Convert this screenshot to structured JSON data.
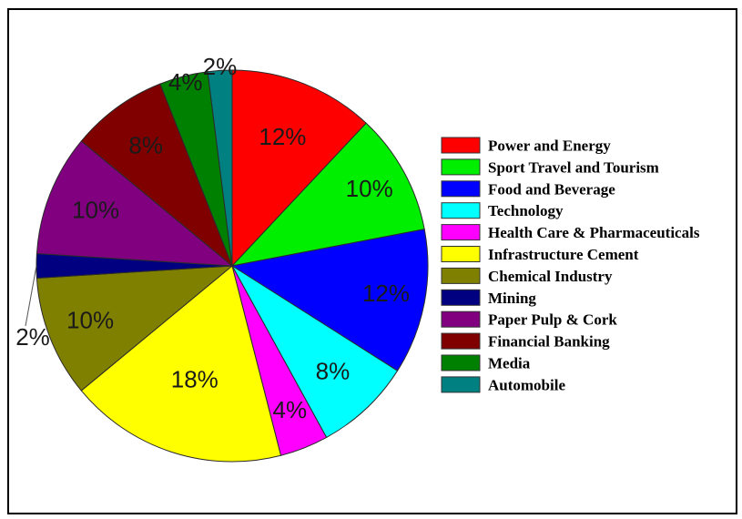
{
  "chart_data": {
    "type": "pie",
    "categories": [
      "Power and Energy",
      "Sport Travel and Tourism",
      "Food and Beverage",
      "Technology",
      "Health Care & Pharmaceuticals",
      "Infrastructure Cement",
      "Chemical Industry",
      "Mining",
      "Paper Pulp & Cork",
      "Financial Banking",
      "Media",
      "Automobile"
    ],
    "values": [
      12,
      10,
      12,
      8,
      4,
      18,
      10,
      2,
      10,
      8,
      4,
      2
    ],
    "labels": [
      "12%",
      "10%",
      "12%",
      "8%",
      "4%",
      "18%",
      "10%",
      "2%",
      "10%",
      "8%",
      "4%",
      "2%"
    ],
    "colors": [
      "#ff0000",
      "#00ee00",
      "#0000ff",
      "#00ffff",
      "#ff00ff",
      "#ffff00",
      "#808000",
      "#000080",
      "#800080",
      "#800000",
      "#008000",
      "#008080"
    ],
    "start_angle": "12 o'clock",
    "direction": "clockwise",
    "legend_position": "right",
    "title": ""
  }
}
